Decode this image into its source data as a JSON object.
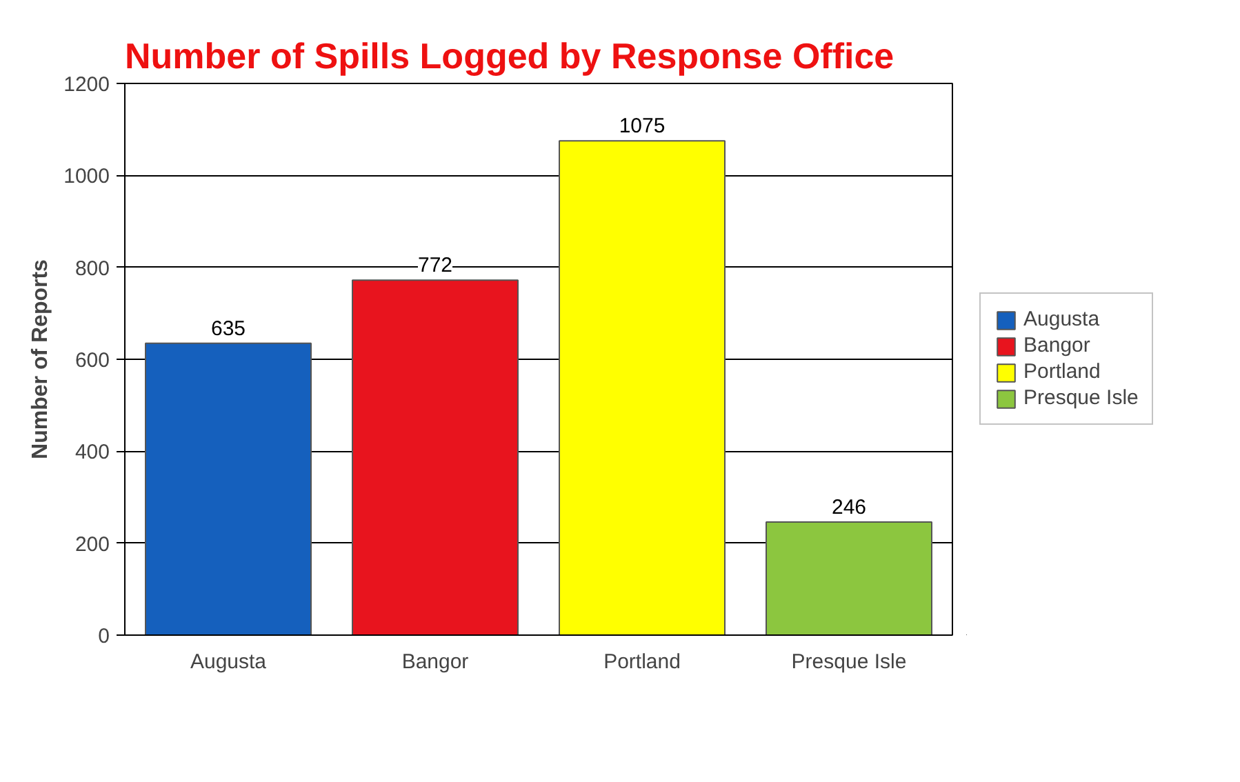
{
  "chart_data": {
    "type": "bar",
    "title": "Number of Spills Logged by Response Office",
    "ylabel": "Number of Reports",
    "categories": [
      "Augusta",
      "Bangor",
      "Portland",
      "Presque Isle"
    ],
    "series": [
      {
        "name": "Augusta",
        "color": "#1560bd",
        "values": [
          635,
          null,
          null,
          null
        ]
      },
      {
        "name": "Bangor",
        "color": "#e8141e",
        "values": [
          null,
          772,
          null,
          null
        ]
      },
      {
        "name": "Portland",
        "color": "#ffff00",
        "values": [
          null,
          null,
          1075,
          null
        ]
      },
      {
        "name": "Presque Isle",
        "color": "#8cc63f",
        "values": [
          null,
          null,
          null,
          246
        ]
      }
    ],
    "ylim": [
      0,
      1200
    ],
    "yticks": [
      0,
      200,
      400,
      600,
      800,
      1000,
      1200
    ],
    "grid": "y",
    "legend": "right",
    "data_labels": true
  }
}
